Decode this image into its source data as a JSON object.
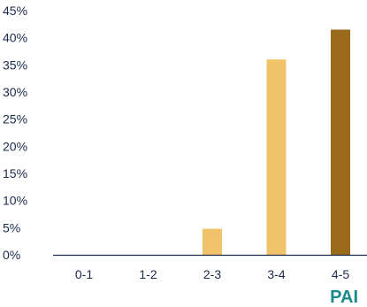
{
  "chart_data": {
    "type": "bar",
    "categories": [
      "0-1",
      "1-2",
      "2-3",
      "3-4",
      "4-5"
    ],
    "values": [
      0,
      0,
      4.8,
      36,
      41.5
    ],
    "bar_colors": [
      "#f0c36a",
      "#f0c36a",
      "#f0c36a",
      "#f0c36a",
      "#9a6a1a"
    ],
    "ylim": [
      0,
      45
    ],
    "yticks": [
      "0%",
      "5%",
      "10%",
      "15%",
      "20%",
      "25%",
      "30%",
      "35%",
      "40%",
      "45%"
    ],
    "xlabel": "PAI",
    "xlabel_color": "#1a8a8a",
    "tick_color": "#1a2a4a",
    "axis_color": "#1a2a4a",
    "grid": false,
    "legend": "none"
  }
}
